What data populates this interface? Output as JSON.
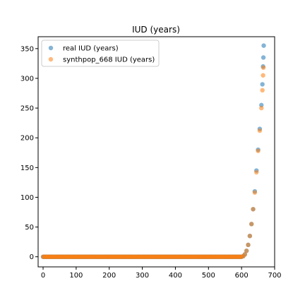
{
  "chart_data": {
    "type": "scatter",
    "title": "IUD (years)",
    "xlabel": "",
    "ylabel": "",
    "xlim": [
      -15,
      700
    ],
    "ylim": [
      -17,
      370
    ],
    "xticks": [
      0,
      100,
      200,
      300,
      400,
      500,
      600,
      700
    ],
    "yticks": [
      0,
      50,
      100,
      150,
      200,
      250,
      300,
      350
    ],
    "grid": false,
    "legend": "top-left",
    "series": [
      {
        "name": "real IUD (years)",
        "color": "#1f77b4",
        "count": 668,
        "flat_until_index": 600,
        "points_tail": [
          [
            600,
            0
          ],
          [
            605,
            1
          ],
          [
            610,
            4
          ],
          [
            615,
            10
          ],
          [
            620,
            20
          ],
          [
            625,
            35
          ],
          [
            630,
            55
          ],
          [
            635,
            80
          ],
          [
            640,
            110
          ],
          [
            645,
            145
          ],
          [
            650,
            180
          ],
          [
            655,
            215
          ],
          [
            660,
            255
          ],
          [
            663,
            290
          ],
          [
            665,
            320
          ],
          [
            666,
            335
          ],
          [
            667,
            355
          ]
        ]
      },
      {
        "name": "synthpop_668 IUD (years)",
        "color": "#ff7f0e",
        "count": 668,
        "flat_until_index": 600,
        "points_tail": [
          [
            600,
            0
          ],
          [
            605,
            1
          ],
          [
            610,
            4
          ],
          [
            615,
            10
          ],
          [
            620,
            20
          ],
          [
            625,
            35
          ],
          [
            630,
            55
          ],
          [
            635,
            80
          ],
          [
            640,
            108
          ],
          [
            645,
            142
          ],
          [
            650,
            178
          ],
          [
            655,
            212
          ],
          [
            660,
            250
          ],
          [
            663,
            280
          ],
          [
            665,
            305
          ],
          [
            666,
            318
          ]
        ]
      }
    ]
  }
}
